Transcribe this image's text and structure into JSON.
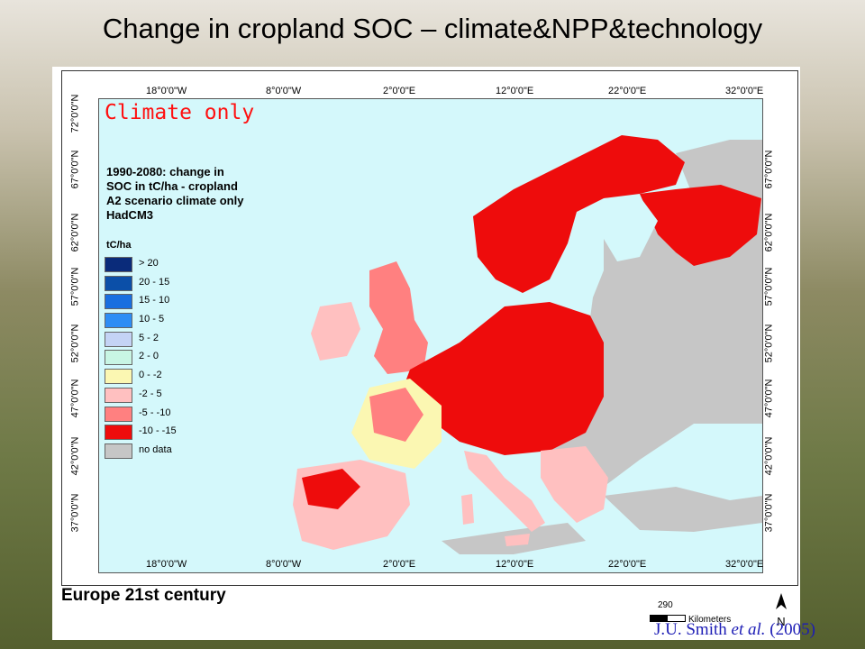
{
  "slide": {
    "title": "Change in cropland SOC – climate&NPP&technology",
    "credit_author": "J.U. Smith ",
    "credit_etal": "et al.",
    "credit_year": " (2005)"
  },
  "map": {
    "overlay_label": "Climate only",
    "legend_title_lines": [
      "1990-2080: change in",
      "SOC in tC/ha  - cropland",
      "A2 scenario climate only",
      "HadCM3"
    ],
    "legend_unit": "tC/ha",
    "legend": [
      {
        "label": "> 20",
        "color": "#0a2b7a"
      },
      {
        "label": "20 - 15",
        "color": "#0b4fa8"
      },
      {
        "label": "15 - 10",
        "color": "#1a6fe0"
      },
      {
        "label": "10 - 5",
        "color": "#2e8df5"
      },
      {
        "label": "5 - 2",
        "color": "#c4d3f5"
      },
      {
        "label": "2 - 0",
        "color": "#c8f5e4"
      },
      {
        "label": "0 - -2",
        "color": "#fbf7b2"
      },
      {
        "label": "-2 - 5",
        "color": "#ffc0c0"
      },
      {
        "label": "-5 - -10",
        "color": "#ff8080"
      },
      {
        "label": "-10 - -15",
        "color": "#ee0c0c"
      },
      {
        "label": "no data",
        "color": "#c6c6c6"
      }
    ],
    "lon_labels": [
      "18°0'0\"W",
      "8°0'0\"W",
      "2°0'0\"E",
      "12°0'0\"E",
      "22°0'0\"E",
      "32°0'0\"E"
    ],
    "lat_labels": [
      "72°0'0\"N",
      "67°0'0\"N",
      "62°0'0\"N",
      "57°0'0\"N",
      "52°0'0\"N",
      "47°0'0\"N",
      "42°0'0\"N",
      "37°0'0\"N"
    ],
    "footer": "Europe 21st century",
    "scale_value": "290",
    "scale_unit": "Kilometers",
    "north_label": "N",
    "colors": {
      "sea": "#d4f8fb",
      "nodata": "#c6c6c6",
      "loss_high": "#ee0c0c",
      "loss_low": "#ffc0c0",
      "neutral": "#fbf7b2"
    }
  }
}
